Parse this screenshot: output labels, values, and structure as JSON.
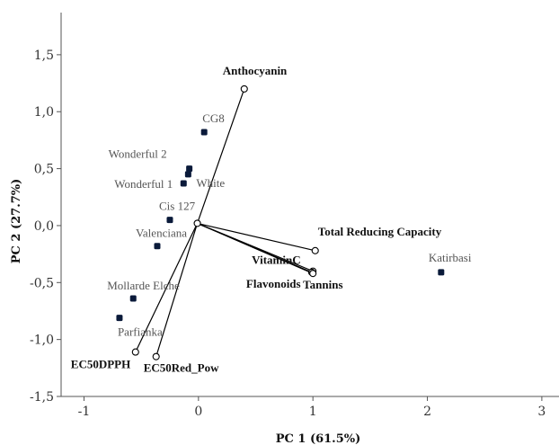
{
  "chart_data": {
    "type": "scatter",
    "title": "",
    "xlabel": "PC 1 (61.5%)",
    "ylabel": "PC 2 (27.7%)",
    "xlim": [
      -1.2,
      3.15
    ],
    "ylim": [
      -1.5,
      1.87
    ],
    "xticks": [
      -1,
      0,
      1,
      2,
      3
    ],
    "xtick_labels": [
      "-1",
      "0",
      "1",
      "2",
      "3"
    ],
    "yticks": [
      -1.5,
      -1.0,
      -0.5,
      0.0,
      0.5,
      1.0,
      1.5
    ],
    "ytick_labels": [
      "-1,5",
      "-1,0",
      "-0,5",
      "0,0",
      "0,5",
      "1,0",
      "1,5"
    ],
    "grid": false,
    "origin": [
      -0.01,
      0.02
    ],
    "points": [
      {
        "label": "CG8",
        "x": 0.05,
        "y": 0.82
      },
      {
        "label": "Wonderful 2",
        "x": -0.08,
        "y": 0.5
      },
      {
        "label": "Wonderful 1",
        "x": -0.13,
        "y": 0.37
      },
      {
        "label": "White",
        "x": -0.09,
        "y": 0.45
      },
      {
        "label": "Cis 127",
        "x": -0.25,
        "y": 0.05
      },
      {
        "label": "Valenciana",
        "x": -0.36,
        "y": -0.18
      },
      {
        "label": "Mollarde Elche",
        "x": -0.57,
        "y": -0.64
      },
      {
        "label": "Parfianka",
        "x": -0.69,
        "y": -0.81
      },
      {
        "label": "Katirbasi",
        "x": 2.12,
        "y": -0.41
      }
    ],
    "vectors": [
      {
        "label": "Anthocyanin",
        "x": 0.4,
        "y": 1.2
      },
      {
        "label": "Total Reducing Capacity",
        "x": 1.02,
        "y": -0.22
      },
      {
        "label": "VitaminC",
        "x": 1.0,
        "y": -0.4
      },
      {
        "label": "Flavonoids",
        "x": 0.99,
        "y": -0.41
      },
      {
        "label": "Tannins",
        "x": 1.0,
        "y": -0.42
      },
      {
        "label": "EC50DPPH",
        "x": -0.55,
        "y": -1.11
      },
      {
        "label": "EC50Red_Pow",
        "x": -0.37,
        "y": -1.15
      }
    ],
    "colors": {
      "point": "#0a1a3a",
      "line": "#000000",
      "axis": "#555555"
    }
  }
}
